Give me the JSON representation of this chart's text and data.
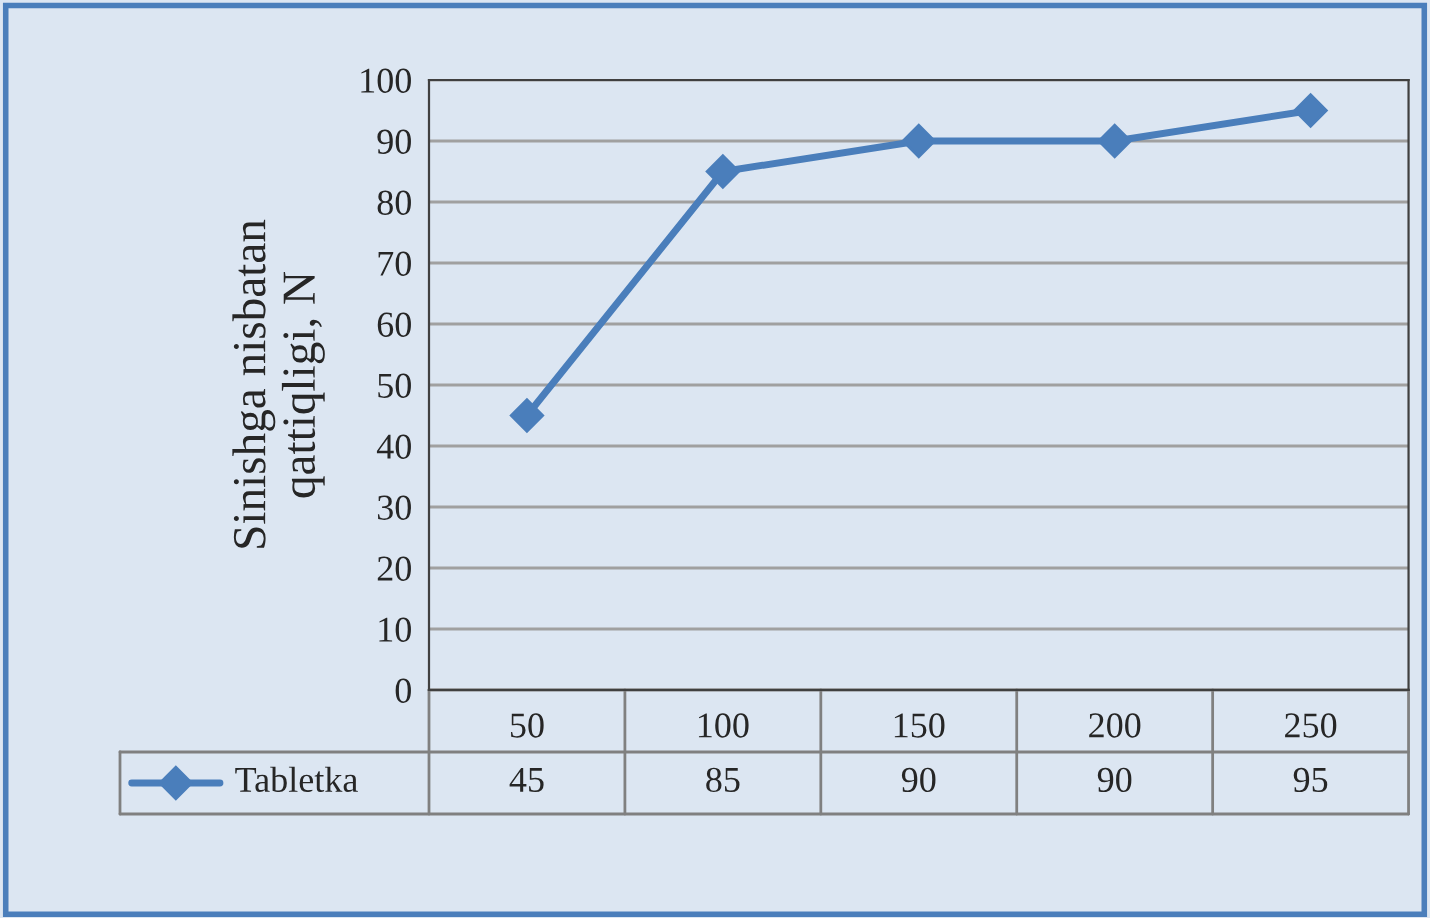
{
  "chart_data": {
    "type": "line",
    "ylabel": "Sinishga nisbatan\nqattiqligi, N",
    "categories": [
      "50",
      "100",
      "150",
      "200",
      "250"
    ],
    "series": [
      {
        "name": "Tabletka",
        "color": "#4a7ebb",
        "values": [
          45,
          85,
          90,
          90,
          95
        ]
      }
    ],
    "ylim": [
      0,
      100
    ],
    "yticks": [
      0,
      10,
      20,
      30,
      40,
      50,
      60,
      70,
      80,
      90,
      100
    ],
    "grid": "y",
    "marker": "diamond",
    "line_style": "solid",
    "data_labels": true,
    "legend": "bottom"
  }
}
